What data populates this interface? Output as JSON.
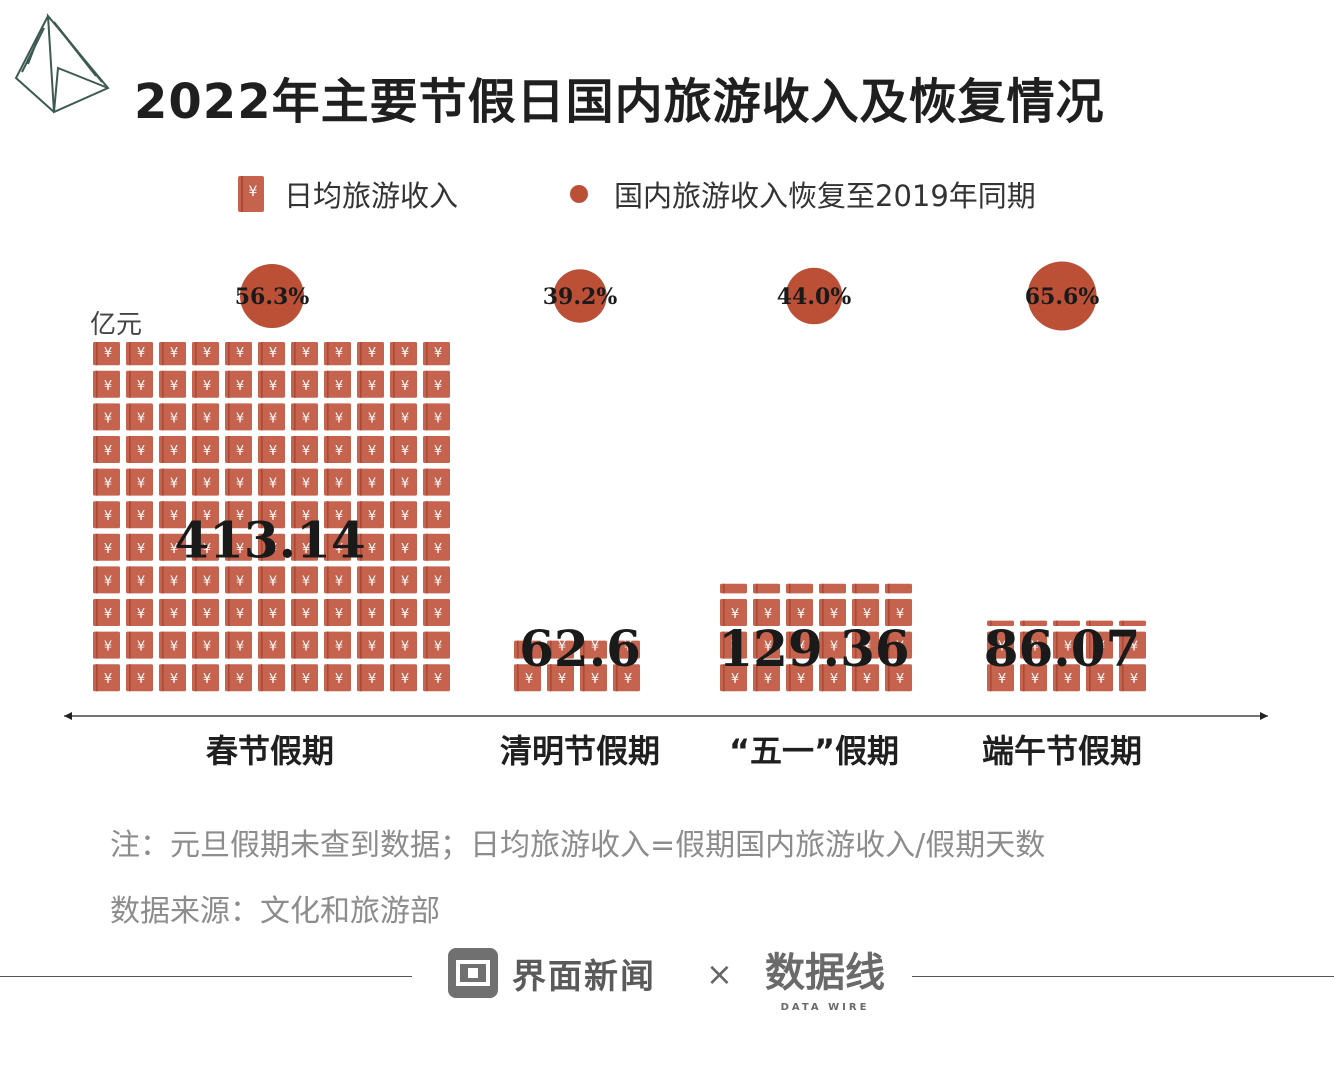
{
  "title": "2022年主要节假日国内旅游收入及恢复情况",
  "legend": {
    "bar_label": "日均旅游收入",
    "dot_label": "国内旅游收入恢复至2019年同期",
    "yen_glyph": "¥"
  },
  "unit": "亿元",
  "notes": {
    "note": "注：元旦假期未查到数据；日均旅游收入=假期国内旅游收入/假期天数",
    "source": "数据来源：文化和旅游部"
  },
  "footer": {
    "brand": "界面新闻",
    "times": "×",
    "datawire": "数据线",
    "datawire_en": "DATA WIRE"
  },
  "colors": {
    "bar": "#c5634e",
    "dot": "#bb5037",
    "text_dark": "#1f1f1f",
    "note": "#8c8c8c"
  },
  "chart_data": {
    "type": "bar",
    "categories": [
      "春节假期",
      "清明节假期",
      "“五一”假期",
      "端午节假期"
    ],
    "series": [
      {
        "name": "日均旅游收入",
        "values": [
          413.14,
          62.6,
          129.36,
          86.07
        ],
        "labels": [
          "413.14",
          "62.6",
          "129.36",
          "86.07"
        ]
      },
      {
        "name": "国内旅游收入恢复至2019年同期",
        "values": [
          56.3,
          39.2,
          44.0,
          65.6
        ],
        "labels": [
          "56.3%",
          "39.2%",
          "44.0%",
          "65.6%"
        ]
      }
    ],
    "ylabel": "亿元"
  }
}
